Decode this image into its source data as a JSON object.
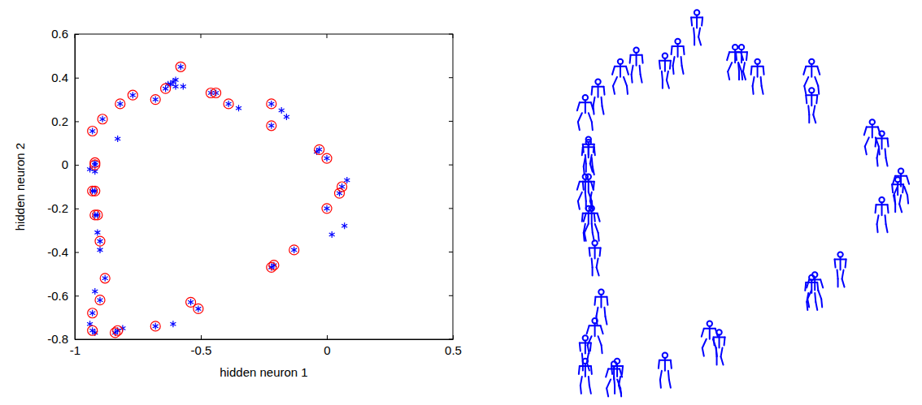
{
  "chart_data": [
    {
      "type": "scatter",
      "xlabel": "hidden neuron 1",
      "ylabel": "hidden neuron 2",
      "xlim": [
        -1,
        0.5
      ],
      "xticks": [
        -1,
        -0.5,
        0,
        0.5
      ],
      "ylim": [
        -0.8,
        0.6
      ],
      "yticks": [
        -0.8,
        -0.6,
        -0.4,
        -0.2,
        0,
        0.2,
        0.4,
        0.6
      ],
      "series": [
        {
          "color": "#0000ff",
          "marker": "star",
          "x": [
            -0.58,
            -0.77,
            -0.82,
            -0.68,
            -0.64,
            -0.46,
            -0.44,
            -0.39,
            -0.22,
            -0.22,
            -0.89,
            -0.93,
            -0.92,
            -0.92,
            -0.93,
            -0.92,
            -0.92,
            -0.91,
            -0.9,
            -0.88,
            -0.9,
            -0.93,
            -0.93,
            -0.84,
            -0.83,
            -0.68,
            -0.54,
            -0.51,
            -0.22,
            -0.21,
            -0.13,
            0.0,
            0.06,
            0.05,
            0.0,
            -0.03,
            -0.6,
            -0.62,
            -0.63,
            -0.6,
            -0.57,
            -0.61,
            -0.35,
            -0.18,
            -0.16,
            -0.83,
            -0.94,
            -0.92,
            -0.91,
            -0.9,
            -0.92,
            -0.94,
            -0.92,
            -0.81,
            -0.61,
            0.07,
            0.02,
            0.08,
            -0.04
          ],
          "values": [
            0.45,
            0.32,
            0.28,
            0.3,
            0.35,
            0.33,
            0.33,
            0.28,
            0.28,
            0.18,
            0.21,
            0.155,
            0.01,
            0.0,
            -0.12,
            -0.12,
            -0.23,
            -0.23,
            -0.35,
            -0.52,
            -0.62,
            -0.68,
            -0.76,
            -0.77,
            -0.76,
            -0.74,
            -0.63,
            -0.66,
            -0.47,
            -0.46,
            -0.39,
            -0.2,
            -0.1,
            -0.13,
            0.03,
            0.07,
            0.39,
            0.37,
            0.37,
            0.36,
            0.36,
            0.38,
            0.26,
            0.25,
            0.22,
            0.12,
            -0.02,
            -0.03,
            -0.31,
            -0.39,
            -0.58,
            -0.73,
            -0.77,
            -0.75,
            -0.73,
            -0.28,
            -0.32,
            -0.07,
            0.06
          ]
        },
        {
          "color": "#ff0000",
          "marker": "circle",
          "x": [
            -0.58,
            -0.77,
            -0.82,
            -0.68,
            -0.64,
            -0.46,
            -0.44,
            -0.39,
            -0.22,
            -0.22,
            -0.89,
            -0.93,
            -0.92,
            -0.92,
            -0.93,
            -0.92,
            -0.92,
            -0.91,
            -0.9,
            -0.88,
            -0.9,
            -0.93,
            -0.93,
            -0.84,
            -0.83,
            -0.68,
            -0.54,
            -0.51,
            -0.22,
            -0.21,
            -0.13,
            0.0,
            0.06,
            0.05,
            0.0,
            -0.03
          ],
          "values": [
            0.45,
            0.32,
            0.28,
            0.3,
            0.35,
            0.33,
            0.33,
            0.28,
            0.28,
            0.18,
            0.21,
            0.155,
            0.01,
            0.0,
            -0.12,
            -0.12,
            -0.23,
            -0.23,
            -0.35,
            -0.52,
            -0.62,
            -0.68,
            -0.76,
            -0.77,
            -0.76,
            -0.74,
            -0.63,
            -0.66,
            -0.47,
            -0.46,
            -0.39,
            -0.2,
            -0.1,
            -0.13,
            0.03,
            0.07
          ]
        }
      ]
    },
    {
      "type": "scatter",
      "tick_labels": false,
      "xlim": [
        -0.95,
        0.07
      ],
      "ylim": [
        -0.78,
        0.46
      ],
      "series": [
        {
          "color": "#0000ff",
          "marker": "stick-figure",
          "x": [
            -0.58,
            -0.77,
            -0.82,
            -0.68,
            -0.64,
            -0.46,
            -0.44,
            -0.39,
            -0.22,
            -0.22,
            -0.89,
            -0.93,
            -0.92,
            -0.92,
            -0.93,
            -0.92,
            -0.92,
            -0.91,
            -0.9,
            -0.88,
            -0.9,
            -0.93,
            -0.93,
            -0.84,
            -0.83,
            -0.68,
            -0.54,
            -0.51,
            -0.22,
            -0.21,
            -0.13,
            0.0,
            0.06,
            0.05,
            0.0,
            -0.03
          ],
          "values": [
            0.45,
            0.32,
            0.28,
            0.3,
            0.35,
            0.33,
            0.33,
            0.28,
            0.28,
            0.18,
            0.21,
            0.155,
            0.01,
            0.0,
            -0.12,
            -0.12,
            -0.23,
            -0.23,
            -0.35,
            -0.52,
            -0.62,
            -0.68,
            -0.76,
            -0.77,
            -0.76,
            -0.74,
            -0.63,
            -0.66,
            -0.47,
            -0.46,
            -0.39,
            -0.2,
            -0.1,
            -0.13,
            0.03,
            0.07
          ]
        }
      ]
    }
  ]
}
